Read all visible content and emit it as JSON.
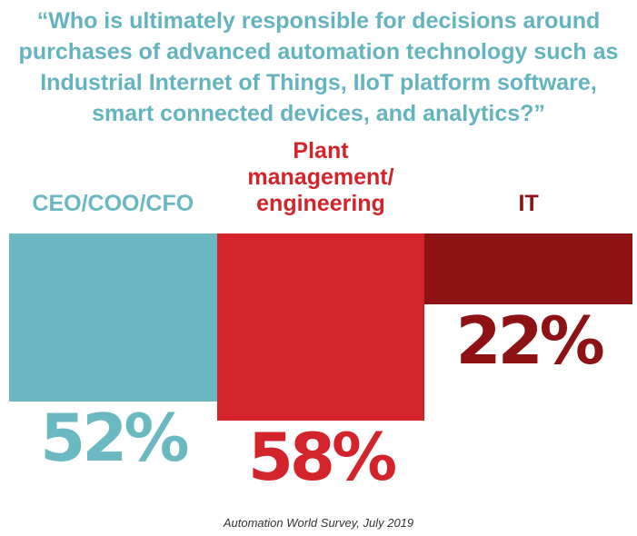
{
  "title": "“Who is ultimately responsible for decisions around purchases of advanced automation technology such as Industrial Internet of Things, IIoT platform software, smart connected devices, and analytics?”",
  "source": "Automation World Survey, July 2019",
  "chart_data": {
    "type": "bar",
    "title": "“Who is ultimately responsible for decisions around purchases of advanced automation technology such as Industrial Internet of Things, IIoT platform software, smart connected devices, and analytics?”",
    "categories": [
      "CEO/COO/CFO",
      "Plant management/ engineering",
      "IT"
    ],
    "category_label_lines": [
      [
        "CEO/COO/CFO"
      ],
      [
        "Plant",
        "management/",
        "engineering"
      ],
      [
        "IT"
      ]
    ],
    "values": [
      52,
      58,
      22
    ],
    "value_labels": [
      "52%",
      "58%",
      "22%"
    ],
    "colors": [
      "#69b8c2",
      "#d2242a",
      "#8e1214"
    ],
    "ylim": [
      0,
      100
    ],
    "orientation": "bars hang downward from a shared top baseline",
    "grid": false,
    "legend": "none"
  }
}
